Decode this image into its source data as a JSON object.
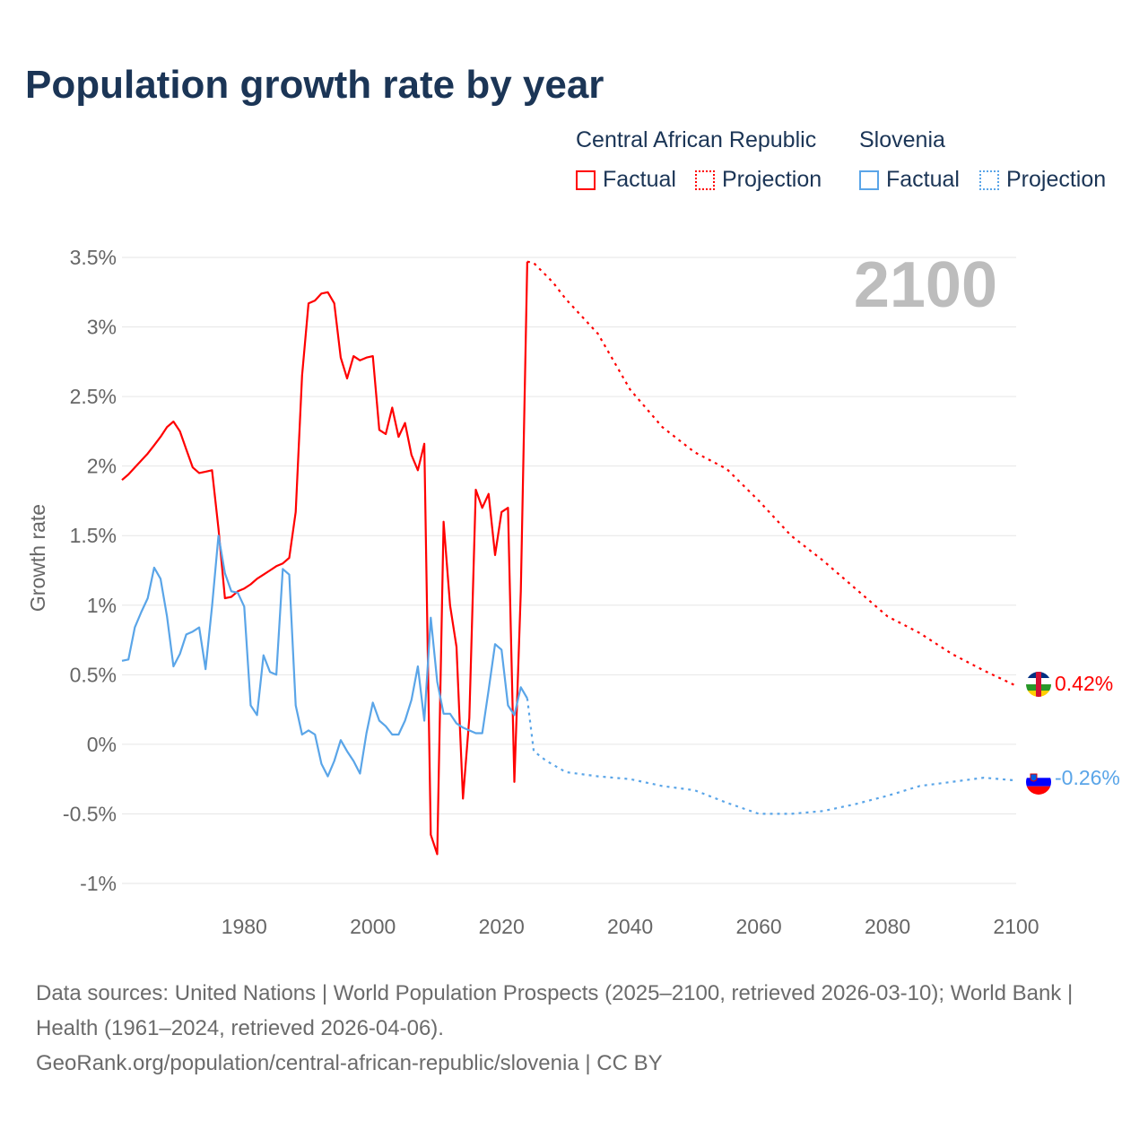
{
  "title": "Population growth rate by year",
  "legend": {
    "groups": [
      {
        "name": "Central African Republic",
        "factual": "Factual",
        "projection": "Projection",
        "color": "#ff0000"
      },
      {
        "name": "Slovenia",
        "factual": "Factual",
        "projection": "Projection",
        "color": "#5aa5e8"
      }
    ]
  },
  "year_label": "2100",
  "end_labels": {
    "car": "0.42%",
    "slovenia": "-0.26%"
  },
  "footer": {
    "sources": "Data sources: United Nations | World Population Prospects (2025–2100, retrieved 2026-03-10); World Bank | Health (1961–2024, retrieved 2026-04-06).",
    "link": "GeoRank.org/population/central-african-republic/slovenia | CC BY"
  },
  "chart_data": {
    "type": "line",
    "title": "Population growth rate by year",
    "xlabel": "",
    "ylabel": "Growth rate",
    "xlim": [
      1961,
      2100
    ],
    "ylim": [
      -1,
      3.5
    ],
    "xticks": [
      1980,
      2000,
      2020,
      2040,
      2060,
      2080,
      2100
    ],
    "xtick_labels": [
      "1980",
      "2000",
      "2020",
      "2040",
      "2060",
      "2080",
      "2100"
    ],
    "yticks": [
      -1,
      -0.5,
      0,
      0.5,
      1,
      1.5,
      2,
      2.5,
      3,
      3.5
    ],
    "ytick_labels": [
      "-1%",
      "-0.5%",
      "0%",
      "0.5%",
      "1%",
      "1.5%",
      "2%",
      "2.5%",
      "3%",
      "3.5%"
    ],
    "grid": true,
    "legend_position": "top-right",
    "series": [
      {
        "name": "Central African Republic — Factual",
        "color": "#ff0000",
        "style": "solid",
        "x_start": 1961,
        "values": [
          1.9,
          1.94,
          1.99,
          2.04,
          2.09,
          2.15,
          2.21,
          2.28,
          2.32,
          2.25,
          2.12,
          1.99,
          1.95,
          1.96,
          1.97,
          1.55,
          1.05,
          1.06,
          1.1,
          1.12,
          1.15,
          1.19,
          1.22,
          1.25,
          1.28,
          1.3,
          1.34,
          1.67,
          2.65,
          3.17,
          3.19,
          3.24,
          3.25,
          3.17,
          2.78,
          2.63,
          2.79,
          2.76,
          2.78,
          2.79,
          2.26,
          2.23,
          2.42,
          2.21,
          2.31,
          2.08,
          1.97,
          2.16,
          -0.65,
          -0.79,
          1.6,
          1.0,
          0.7,
          -0.39,
          0.19,
          1.83,
          1.7,
          1.8,
          1.36,
          1.67,
          1.7,
          -0.27,
          1.1,
          3.47
        ]
      },
      {
        "name": "Central African Republic — Projection",
        "color": "#ff0000",
        "style": "dotted",
        "x": [
          2024,
          2025,
          2028,
          2030,
          2035,
          2040,
          2045,
          2050,
          2055,
          2060,
          2065,
          2070,
          2075,
          2080,
          2085,
          2090,
          2095,
          2100
        ],
        "values": [
          3.47,
          3.46,
          3.32,
          3.2,
          2.95,
          2.55,
          2.28,
          2.1,
          1.98,
          1.75,
          1.5,
          1.32,
          1.12,
          0.92,
          0.8,
          0.65,
          0.53,
          0.42
        ]
      },
      {
        "name": "Slovenia — Factual",
        "color": "#5aa5e8",
        "style": "solid",
        "x_start": 1961,
        "values": [
          0.6,
          0.61,
          0.84,
          0.95,
          1.05,
          1.27,
          1.19,
          0.92,
          0.56,
          0.65,
          0.79,
          0.81,
          0.84,
          0.54,
          0.99,
          1.5,
          1.23,
          1.1,
          1.09,
          0.99,
          0.28,
          0.21,
          0.64,
          0.52,
          0.5,
          1.26,
          1.22,
          0.28,
          0.07,
          0.1,
          0.07,
          -0.14,
          -0.23,
          -0.12,
          0.03,
          -0.05,
          -0.12,
          -0.21,
          0.08,
          0.3,
          0.17,
          0.13,
          0.07,
          0.07,
          0.17,
          0.32,
          0.56,
          0.17,
          0.91,
          0.45,
          0.22,
          0.22,
          0.15,
          0.12,
          0.1,
          0.08,
          0.08,
          0.39,
          0.72,
          0.68,
          0.28,
          0.21,
          0.41,
          0.33
        ]
      },
      {
        "name": "Slovenia — Projection",
        "color": "#5aa5e8",
        "style": "dotted",
        "x": [
          2024,
          2025,
          2027,
          2030,
          2035,
          2040,
          2045,
          2050,
          2055,
          2060,
          2065,
          2070,
          2075,
          2080,
          2085,
          2090,
          2095,
          2100
        ],
        "values": [
          0.33,
          -0.05,
          -0.12,
          -0.2,
          -0.23,
          -0.25,
          -0.3,
          -0.33,
          -0.42,
          -0.5,
          -0.5,
          -0.48,
          -0.43,
          -0.37,
          -0.3,
          -0.27,
          -0.24,
          -0.26
        ]
      }
    ]
  }
}
